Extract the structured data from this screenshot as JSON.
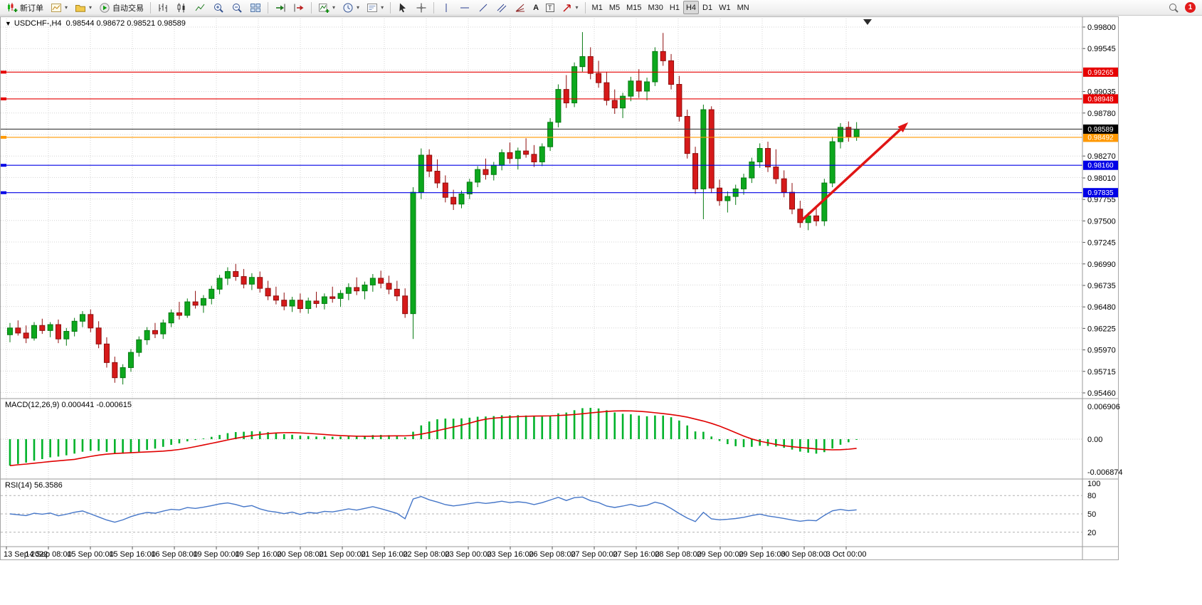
{
  "toolbar": {
    "new_order_label": "新订单",
    "autotrading_label": "自动交易",
    "text_tool": "A",
    "label_tool": "T",
    "timeframes": [
      "M1",
      "M5",
      "M15",
      "M30",
      "H1",
      "H4",
      "D1",
      "W1",
      "MN"
    ],
    "active_timeframe": "H4",
    "notification_count": "1"
  },
  "chart": {
    "info_symbol": "USDCHF-,H4",
    "info_ohlc": "0.98544 0.98672 0.98521 0.98589"
  },
  "chart_data": {
    "type": "candlestick",
    "symbol": "USDCHF-",
    "period": "H4",
    "ohlc_current": {
      "open": "0.98544",
      "high": "0.98672",
      "low": "0.98521",
      "close": "0.98589"
    },
    "colors": {
      "bull": "#0ca81d",
      "bull_edge": "#077a12",
      "bear": "#d61a1a",
      "bear_edge": "#8f0d0d",
      "grid": "#d4d4d4",
      "axis_line": "#9a9a9a",
      "macd_histogram": "#00b22a",
      "macd_signal": "#e00000",
      "rsi_line": "#4576c8",
      "arrow": "#e01515",
      "current_line": "#3c3c3c"
    },
    "price_axis": {
      "max": 0.998,
      "min": 0.9546,
      "tick_step": 0.00255,
      "tick_labels": [
        "0.99800",
        "0.99545",
        "0.99035",
        "0.98780",
        "0.98270",
        "0.98010",
        "0.97755",
        "0.97500",
        "0.97245",
        "0.96990",
        "0.96735",
        "0.96480",
        "0.96225",
        "0.95970",
        "0.95715",
        "0.95460"
      ]
    },
    "time_labels": [
      "13 Sep 2022",
      "14 Sep 08:00",
      "15 Sep 00:00",
      "15 Sep 16:00",
      "16 Sep 08:00",
      "19 Sep 00:00",
      "19 Sep 16:00",
      "20 Sep 08:00",
      "21 Sep 00:00",
      "21 Sep 16:00",
      "22 Sep 08:00",
      "23 Sep 00:00",
      "23 Sep 16:00",
      "26 Sep 08:00",
      "27 Sep 00:00",
      "27 Sep 16:00",
      "28 Sep 08:00",
      "29 Sep 00:00",
      "29 Sep 16:00",
      "30 Sep 08:00",
      "3 Oct 00:00"
    ],
    "price_lines": [
      {
        "price": 0.99265,
        "label": "0.99265",
        "color": "#e60000",
        "role": "resistance"
      },
      {
        "price": 0.98948,
        "label": "0.98948",
        "color": "#e60000",
        "role": "resistance"
      },
      {
        "price": 0.98492,
        "label": "0.98492",
        "color": "#ff9800",
        "role": "level"
      },
      {
        "price": 0.9816,
        "label": "0.98160",
        "color": "#0000e6",
        "role": "support"
      },
      {
        "price": 0.97835,
        "label": "0.97835",
        "color": "#0000e6",
        "role": "support"
      },
      {
        "price": 0.98589,
        "label": "0.98589",
        "color": "#000000",
        "role": "current"
      }
    ],
    "indicators": [
      {
        "name": "MACD",
        "label": "MACD(12,26,9) 0.000441 -0.000615",
        "params": [
          12,
          26,
          9
        ],
        "values_display": [
          "0.000441",
          "-0.000615"
        ],
        "axis_labels": [
          "0.006906",
          "0.00",
          "-0.006874"
        ]
      },
      {
        "name": "RSI",
        "label": "RSI(14) 56.3586",
        "params": [
          14
        ],
        "value_display": "56.3586",
        "levels": [
          80,
          50,
          20
        ],
        "axis_labels": [
          "100",
          "80",
          "50",
          "20"
        ]
      }
    ],
    "annotation_arrow": {
      "bar1": 98,
      "price1": 0.9749,
      "bar2": 111.4,
      "price2": 0.9867
    },
    "candles": [
      [
        0.9615,
        0.9629,
        0.9606,
        0.9623
      ],
      [
        0.9623,
        0.9632,
        0.9614,
        0.9617
      ],
      [
        0.9617,
        0.9626,
        0.9605,
        0.9611
      ],
      [
        0.9611,
        0.963,
        0.9608,
        0.9626
      ],
      [
        0.9626,
        0.9634,
        0.9616,
        0.962
      ],
      [
        0.962,
        0.963,
        0.9612,
        0.9627
      ],
      [
        0.9627,
        0.9633,
        0.9605,
        0.961
      ],
      [
        0.961,
        0.9623,
        0.9602,
        0.9619
      ],
      [
        0.9619,
        0.9635,
        0.9613,
        0.9631
      ],
      [
        0.9631,
        0.9643,
        0.9624,
        0.9639
      ],
      [
        0.9639,
        0.9645,
        0.9618,
        0.9623
      ],
      [
        0.9623,
        0.9631,
        0.9599,
        0.9604
      ],
      [
        0.9604,
        0.9612,
        0.9576,
        0.9582
      ],
      [
        0.9582,
        0.9589,
        0.9558,
        0.9564
      ],
      [
        0.9564,
        0.958,
        0.9556,
        0.9576
      ],
      [
        0.9576,
        0.9598,
        0.9571,
        0.9594
      ],
      [
        0.9594,
        0.9613,
        0.9589,
        0.9609
      ],
      [
        0.9609,
        0.9624,
        0.9603,
        0.962
      ],
      [
        0.962,
        0.9629,
        0.9611,
        0.9616
      ],
      [
        0.9616,
        0.9633,
        0.961,
        0.9629
      ],
      [
        0.9629,
        0.9645,
        0.9624,
        0.9641
      ],
      [
        0.9641,
        0.9654,
        0.9633,
        0.9638
      ],
      [
        0.9638,
        0.9658,
        0.9635,
        0.9654
      ],
      [
        0.9654,
        0.9667,
        0.9646,
        0.965
      ],
      [
        0.965,
        0.9662,
        0.9641,
        0.9658
      ],
      [
        0.9658,
        0.9673,
        0.9651,
        0.9669
      ],
      [
        0.9669,
        0.9686,
        0.9663,
        0.9682
      ],
      [
        0.9682,
        0.9695,
        0.9674,
        0.969
      ],
      [
        0.969,
        0.9699,
        0.9679,
        0.9684
      ],
      [
        0.9684,
        0.9693,
        0.967,
        0.9675
      ],
      [
        0.9675,
        0.9688,
        0.9668,
        0.9683
      ],
      [
        0.9683,
        0.969,
        0.9665,
        0.967
      ],
      [
        0.967,
        0.9679,
        0.9656,
        0.9661
      ],
      [
        0.9661,
        0.9672,
        0.9651,
        0.9656
      ],
      [
        0.9656,
        0.9665,
        0.9644,
        0.9649
      ],
      [
        0.9649,
        0.966,
        0.9642,
        0.9656
      ],
      [
        0.9656,
        0.9664,
        0.9641,
        0.9646
      ],
      [
        0.9646,
        0.9659,
        0.964,
        0.9655
      ],
      [
        0.9655,
        0.9666,
        0.9647,
        0.9652
      ],
      [
        0.9652,
        0.9664,
        0.9645,
        0.966
      ],
      [
        0.966,
        0.9672,
        0.9653,
        0.9658
      ],
      [
        0.9658,
        0.9668,
        0.9648,
        0.9664
      ],
      [
        0.9664,
        0.9676,
        0.9656,
        0.9671
      ],
      [
        0.9671,
        0.9683,
        0.9662,
        0.9667
      ],
      [
        0.9667,
        0.9678,
        0.9657,
        0.9674
      ],
      [
        0.9674,
        0.9687,
        0.9666,
        0.9682
      ],
      [
        0.9682,
        0.9691,
        0.967,
        0.9676
      ],
      [
        0.9676,
        0.9685,
        0.9663,
        0.9669
      ],
      [
        0.9669,
        0.9679,
        0.9655,
        0.9661
      ],
      [
        0.9661,
        0.967,
        0.9635,
        0.964
      ],
      [
        0.964,
        0.979,
        0.961,
        0.9784
      ],
      [
        0.9784,
        0.9836,
        0.9776,
        0.9828
      ],
      [
        0.9828,
        0.9835,
        0.9802,
        0.9809
      ],
      [
        0.9809,
        0.9823,
        0.9789,
        0.9795
      ],
      [
        0.9795,
        0.9804,
        0.9772,
        0.9778
      ],
      [
        0.9778,
        0.9787,
        0.9763,
        0.977
      ],
      [
        0.977,
        0.9786,
        0.9765,
        0.9782
      ],
      [
        0.9782,
        0.98,
        0.9776,
        0.9796
      ],
      [
        0.9796,
        0.9815,
        0.979,
        0.9811
      ],
      [
        0.9811,
        0.9824,
        0.9799,
        0.9805
      ],
      [
        0.9805,
        0.982,
        0.9798,
        0.9816
      ],
      [
        0.9816,
        0.9835,
        0.981,
        0.9831
      ],
      [
        0.9831,
        0.9843,
        0.9818,
        0.9824
      ],
      [
        0.9824,
        0.9837,
        0.9811,
        0.9833
      ],
      [
        0.9833,
        0.9848,
        0.9825,
        0.9829
      ],
      [
        0.9829,
        0.984,
        0.9814,
        0.982
      ],
      [
        0.982,
        0.9842,
        0.9815,
        0.9838
      ],
      [
        0.9838,
        0.9872,
        0.9833,
        0.9867
      ],
      [
        0.9867,
        0.9912,
        0.9861,
        0.9906
      ],
      [
        0.9906,
        0.9923,
        0.9884,
        0.989
      ],
      [
        0.989,
        0.9938,
        0.9885,
        0.9933
      ],
      [
        0.9933,
        0.9974,
        0.9927,
        0.9945
      ],
      [
        0.9945,
        0.9956,
        0.9918,
        0.9925
      ],
      [
        0.9925,
        0.994,
        0.9908,
        0.9914
      ],
      [
        0.9914,
        0.9927,
        0.9887,
        0.9893
      ],
      [
        0.9893,
        0.9906,
        0.9877,
        0.9884
      ],
      [
        0.9884,
        0.9902,
        0.9872,
        0.9898
      ],
      [
        0.9898,
        0.9921,
        0.9892,
        0.9916
      ],
      [
        0.9916,
        0.993,
        0.9896,
        0.9904
      ],
      [
        0.9904,
        0.992,
        0.9893,
        0.9915
      ],
      [
        0.9915,
        0.9956,
        0.991,
        0.9951
      ],
      [
        0.9951,
        0.9973,
        0.9934,
        0.994
      ],
      [
        0.994,
        0.9948,
        0.9906,
        0.9912
      ],
      [
        0.9912,
        0.9922,
        0.9868,
        0.9874
      ],
      [
        0.9874,
        0.9882,
        0.9824,
        0.983
      ],
      [
        0.983,
        0.9838,
        0.9782,
        0.9788
      ],
      [
        0.9788,
        0.9888,
        0.9752,
        0.9882
      ],
      [
        0.9882,
        0.9886,
        0.9783,
        0.9789
      ],
      [
        0.9789,
        0.9799,
        0.9768,
        0.9774
      ],
      [
        0.9774,
        0.9785,
        0.976,
        0.9779
      ],
      [
        0.9779,
        0.9793,
        0.9769,
        0.9788
      ],
      [
        0.9788,
        0.9806,
        0.9781,
        0.9801
      ],
      [
        0.9801,
        0.9825,
        0.9795,
        0.982
      ],
      [
        0.982,
        0.9842,
        0.9813,
        0.9836
      ],
      [
        0.9836,
        0.9844,
        0.9808,
        0.9814
      ],
      [
        0.9814,
        0.9835,
        0.9794,
        0.98
      ],
      [
        0.98,
        0.981,
        0.9778,
        0.9784
      ],
      [
        0.9784,
        0.9795,
        0.9758,
        0.9764
      ],
      [
        0.9764,
        0.9774,
        0.9742,
        0.9748
      ],
      [
        0.9748,
        0.976,
        0.9739,
        0.9756
      ],
      [
        0.9756,
        0.9768,
        0.9744,
        0.975
      ],
      [
        0.975,
        0.98,
        0.9744,
        0.9795
      ],
      [
        0.9795,
        0.985,
        0.979,
        0.9844
      ],
      [
        0.9844,
        0.9866,
        0.9836,
        0.9861
      ],
      [
        0.9861,
        0.9868,
        0.9844,
        0.985
      ],
      [
        0.985,
        0.98672,
        0.9845,
        0.98589
      ]
    ]
  }
}
